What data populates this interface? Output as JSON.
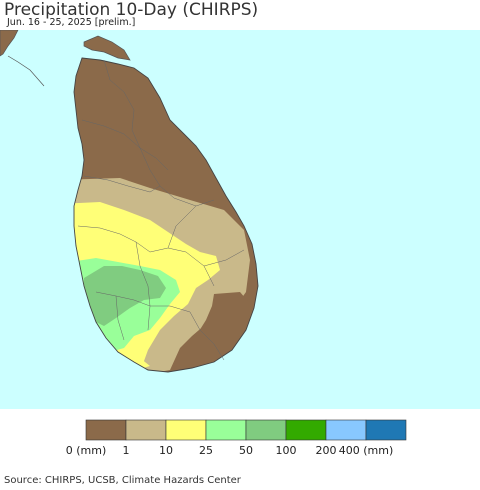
{
  "header": {
    "title": "Precipitation 10-Day (CHIRPS)",
    "subtitle": "Jun. 16 - 25, 2025 [prelim.]"
  },
  "colors": {
    "ocean": "#ccffff",
    "land_none": "#ffffff",
    "border": "#555555"
  },
  "legend": {
    "bins": [
      {
        "color": "#8b6a4a",
        "range": "0-1"
      },
      {
        "color": "#c9b98a",
        "range": "1-10"
      },
      {
        "color": "#ffff77",
        "range": "10-25"
      },
      {
        "color": "#99ff99",
        "range": "25-50"
      },
      {
        "color": "#80cc80",
        "range": "50-100"
      },
      {
        "color": "#33aa00",
        "range": "100-200"
      },
      {
        "color": "#88c8ff",
        "range": "200-400"
      },
      {
        "color": "#1f78b4",
        "range": "400+"
      }
    ],
    "labels": [
      "0 (mm)",
      "1",
      "10",
      "25",
      "50",
      "100",
      "200",
      "400 (mm)"
    ]
  },
  "footer": {
    "source": "Source: CHIRPS, UCSB, Climate Hazards Center"
  }
}
